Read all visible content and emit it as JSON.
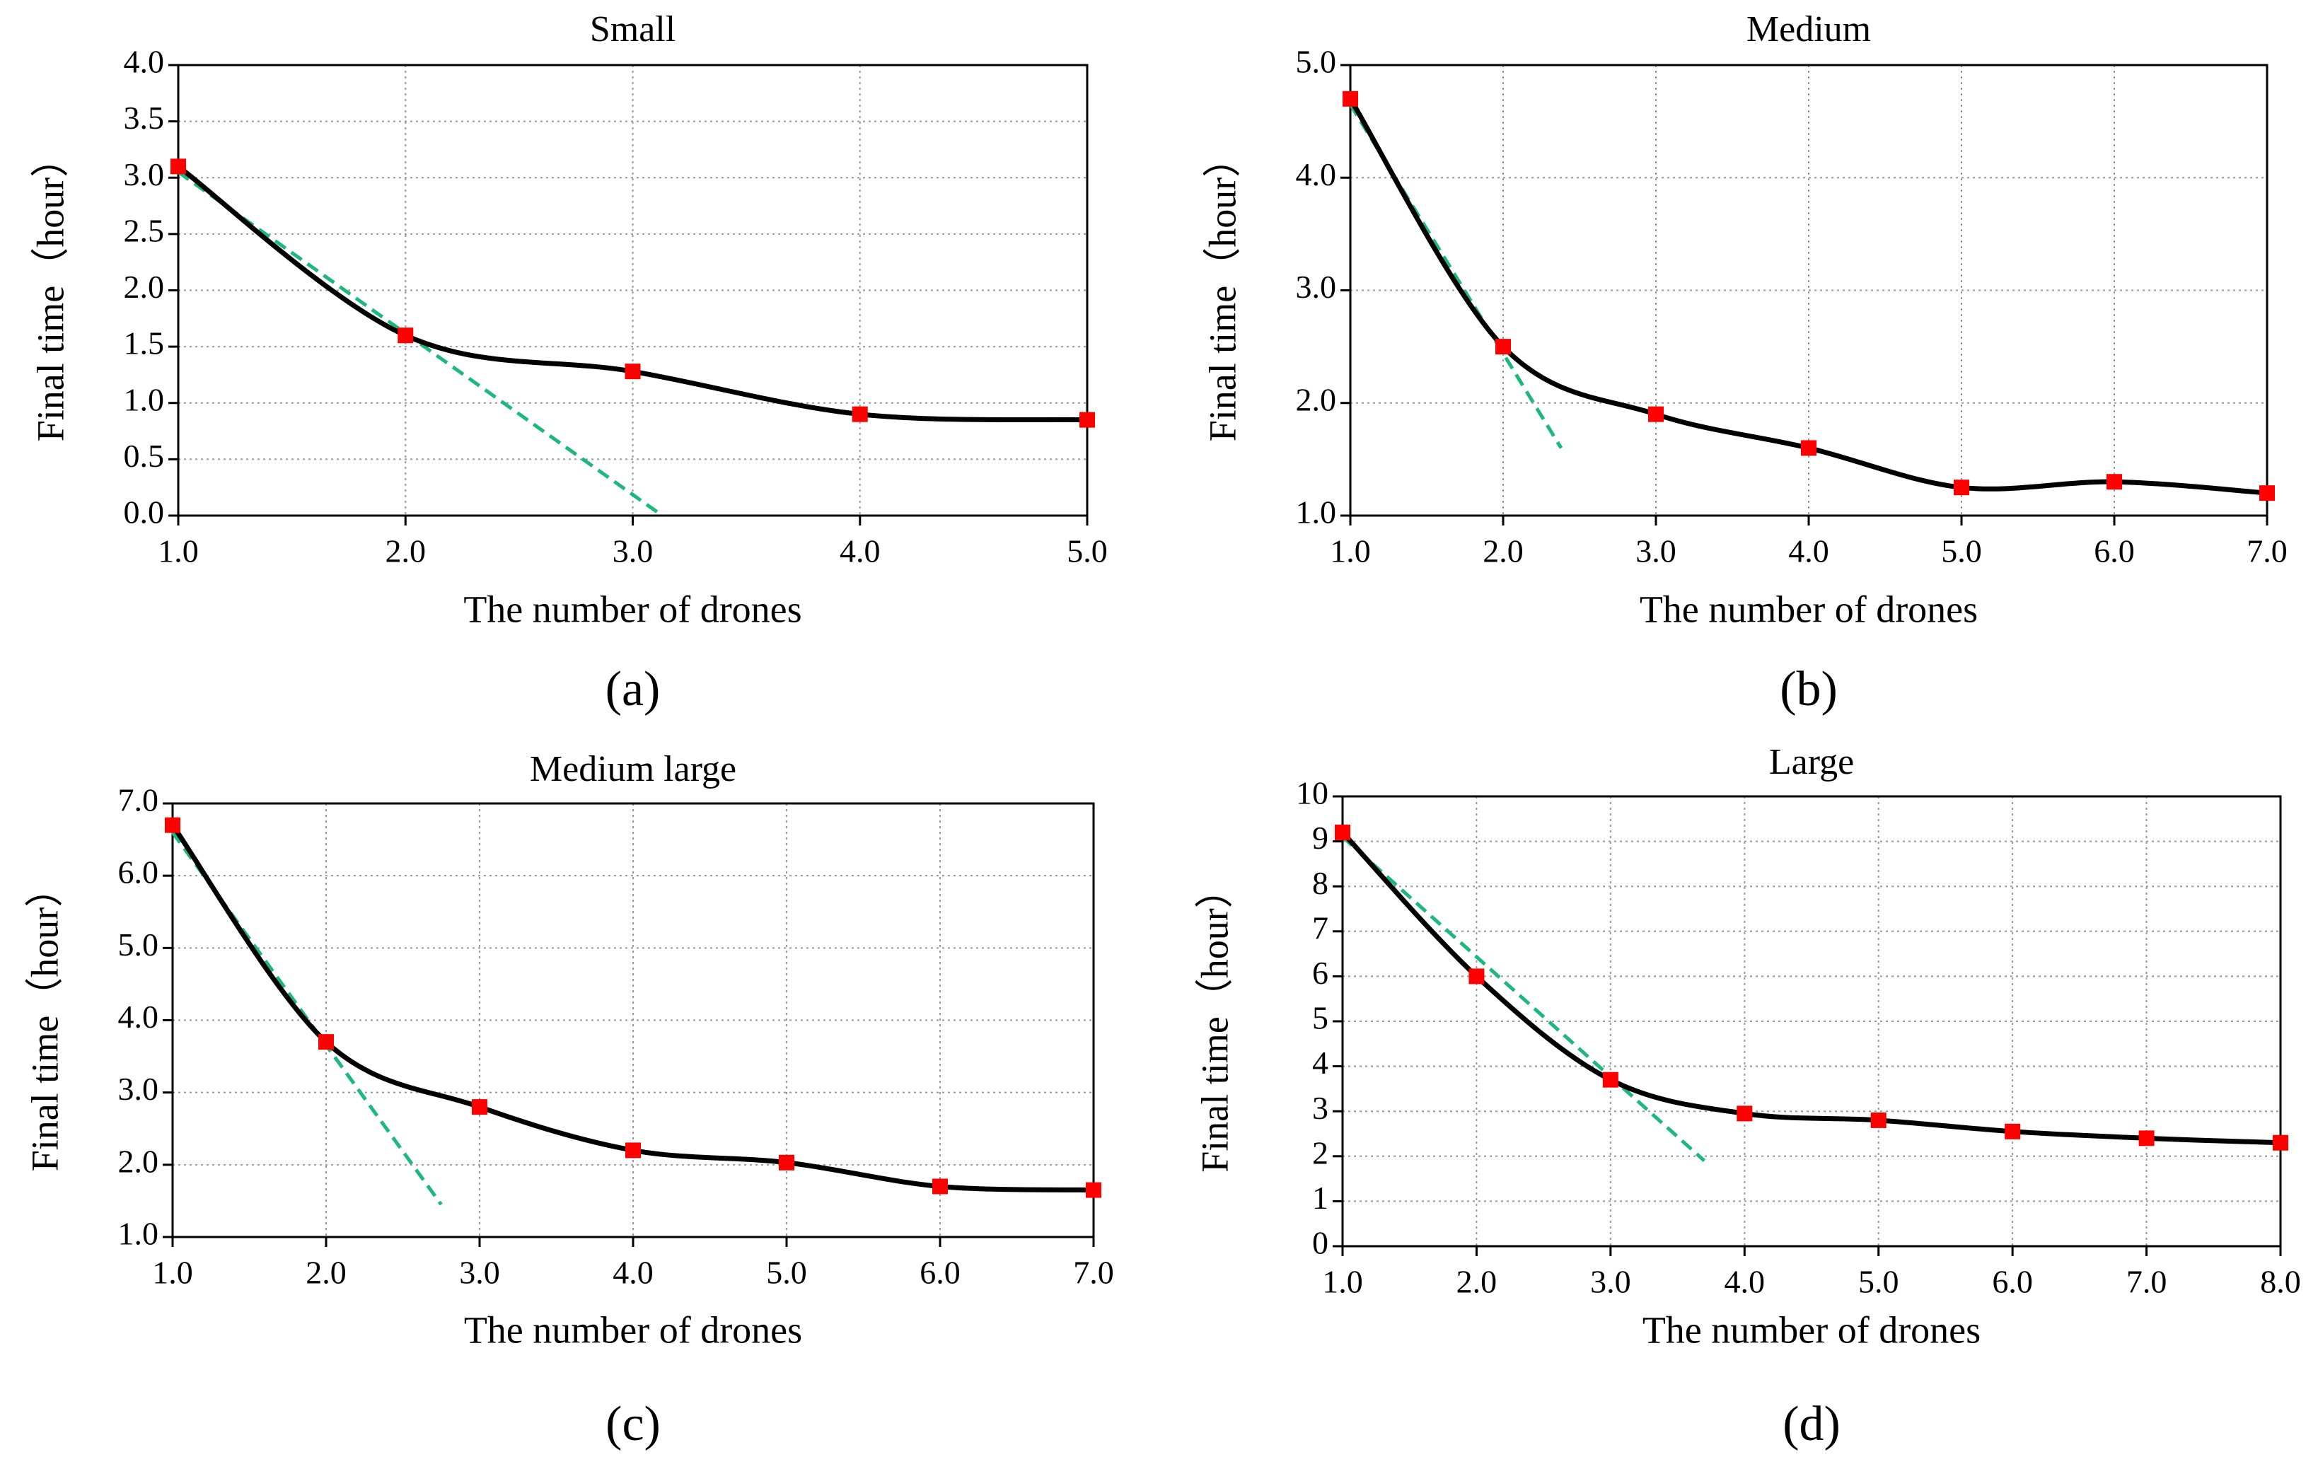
{
  "chart_data": [
    {
      "type": "line",
      "title": "Small",
      "x_label": "The number of drones",
      "y_label": "Final time（hour）",
      "panel_label": "(a)",
      "x": [
        1,
        2,
        3,
        4,
        5
      ],
      "series": [
        {
          "color": "#000000",
          "marker_color": "#ff0000",
          "values": [
            3.1,
            1.6,
            1.28,
            0.9,
            0.85
          ]
        }
      ],
      "tangent": {
        "color": "#1db87a",
        "x": [
          1,
          3.13
        ],
        "values": [
          3.05,
          0
        ]
      },
      "xlim": [
        1,
        5
      ],
      "ylim": [
        0,
        4
      ],
      "xticks": [
        {
          "value": 1,
          "label": "1.0"
        },
        {
          "value": 2,
          "label": "2.0"
        },
        {
          "value": 3,
          "label": "3.0"
        },
        {
          "value": 4,
          "label": "4.0"
        },
        {
          "value": 5,
          "label": "5.0"
        }
      ],
      "yticks": [
        {
          "value": 0,
          "label": "0.0"
        },
        0.5,
        {
          "value": 1,
          "label": "1.0"
        },
        1.5,
        {
          "value": 2,
          "label": "2.0"
        },
        2.5,
        {
          "value": 3,
          "label": "3.0"
        },
        3.5,
        {
          "value": 4,
          "label": "4.0"
        }
      ],
      "grid": true
    },
    {
      "type": "line",
      "title": "Medium",
      "x_label": "The number of drones",
      "y_label": "Final time（hour）",
      "panel_label": "(b)",
      "x": [
        1,
        2,
        3,
        4,
        5,
        6,
        7
      ],
      "series": [
        {
          "color": "#000000",
          "marker_color": "#ff0000",
          "values": [
            4.7,
            2.5,
            1.9,
            1.6,
            1.25,
            1.3,
            1.2
          ]
        }
      ],
      "tangent": {
        "color": "#1db87a",
        "x": [
          1,
          2.38
        ],
        "values": [
          4.65,
          1.6
        ]
      },
      "xlim": [
        1,
        7
      ],
      "ylim": [
        1,
        5
      ],
      "xticks": [
        {
          "value": 1,
          "label": "1.0"
        },
        {
          "value": 2,
          "label": "2.0"
        },
        {
          "value": 3,
          "label": "3.0"
        },
        {
          "value": 4,
          "label": "4.0"
        },
        {
          "value": 5,
          "label": "5.0"
        },
        {
          "value": 6,
          "label": "6.0"
        },
        {
          "value": 7,
          "label": "7.0"
        }
      ],
      "yticks": [
        {
          "value": 1,
          "label": "1.0"
        },
        {
          "value": 2,
          "label": "2.0"
        },
        {
          "value": 3,
          "label": "3.0"
        },
        {
          "value": 4,
          "label": "4.0"
        },
        {
          "value": 5,
          "label": "5.0"
        }
      ],
      "grid": true
    },
    {
      "type": "line",
      "title": "Medium large",
      "x_label": "The number of drones",
      "y_label": "Final time（hour）",
      "panel_label": "(c)",
      "x": [
        1,
        2,
        3,
        4,
        5,
        6,
        7
      ],
      "series": [
        {
          "color": "#000000",
          "marker_color": "#ff0000",
          "values": [
            6.7,
            3.7,
            2.8,
            2.2,
            2.03,
            1.7,
            1.65
          ]
        }
      ],
      "tangent": {
        "color": "#1db87a",
        "x": [
          1,
          2.75
        ],
        "values": [
          6.6,
          1.45
        ]
      },
      "xlim": [
        1,
        7
      ],
      "ylim": [
        1,
        7
      ],
      "xticks": [
        {
          "value": 1,
          "label": "1.0"
        },
        {
          "value": 2,
          "label": "2.0"
        },
        {
          "value": 3,
          "label": "3.0"
        },
        {
          "value": 4,
          "label": "4.0"
        },
        {
          "value": 5,
          "label": "5.0"
        },
        {
          "value": 6,
          "label": "6.0"
        },
        {
          "value": 7,
          "label": "7.0"
        }
      ],
      "yticks": [
        {
          "value": 1,
          "label": "1.0"
        },
        {
          "value": 2,
          "label": "2.0"
        },
        {
          "value": 3,
          "label": "3.0"
        },
        {
          "value": 4,
          "label": "4.0"
        },
        {
          "value": 5,
          "label": "5.0"
        },
        {
          "value": 6,
          "label": "6.0"
        },
        {
          "value": 7,
          "label": "7.0"
        }
      ],
      "grid": true
    },
    {
      "type": "line",
      "title": "Large",
      "x_label": "The number of drones",
      "y_label": "Final time（hour）",
      "panel_label": "(d)",
      "x": [
        1,
        2,
        3,
        4,
        5,
        6,
        7,
        8
      ],
      "series": [
        {
          "color": "#000000",
          "marker_color": "#ff0000",
          "values": [
            9.2,
            6.0,
            3.7,
            2.95,
            2.8,
            2.55,
            2.4,
            2.3
          ]
        }
      ],
      "tangent": {
        "color": "#1db87a",
        "x": [
          1,
          3.7
        ],
        "values": [
          9.1,
          1.9
        ]
      },
      "xlim": [
        1,
        8
      ],
      "ylim": [
        0,
        10
      ],
      "xticks": [
        {
          "value": 1,
          "label": "1.0"
        },
        {
          "value": 2,
          "label": "2.0"
        },
        {
          "value": 3,
          "label": "3.0"
        },
        {
          "value": 4,
          "label": "4.0"
        },
        {
          "value": 5,
          "label": "5.0"
        },
        {
          "value": 6,
          "label": "6.0"
        },
        {
          "value": 7,
          "label": "7.0"
        },
        {
          "value": 8,
          "label": "8.0"
        }
      ],
      "yticks": [
        0,
        1,
        2,
        3,
        4,
        5,
        6,
        7,
        8,
        9,
        10
      ],
      "grid": true
    }
  ]
}
